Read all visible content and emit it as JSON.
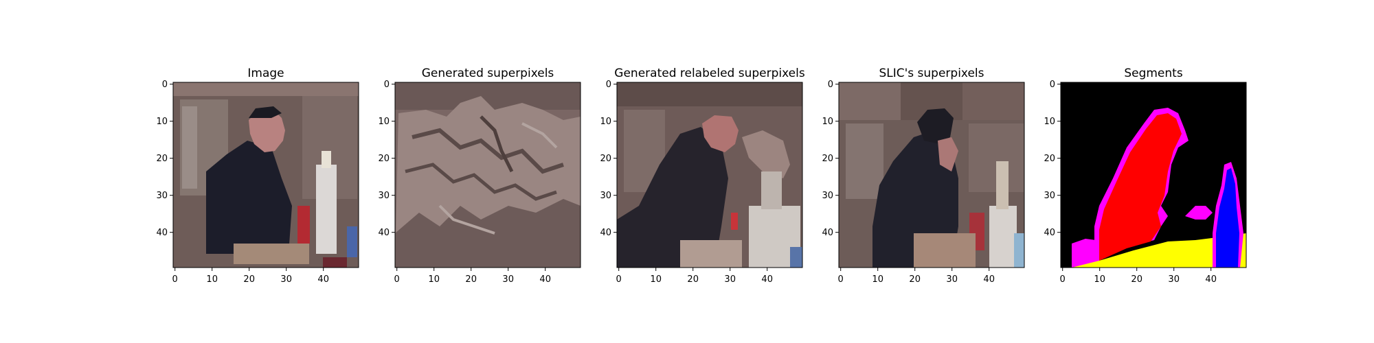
{
  "chart_data": [
    {
      "type": "image",
      "title": "Image",
      "x_ticks": [
        0,
        10,
        20,
        30,
        40
      ],
      "y_ticks": [
        0,
        10,
        20,
        30,
        40
      ],
      "xlim": [
        -0.5,
        49.5
      ],
      "ylim": [
        49.5,
        -0.5
      ]
    },
    {
      "type": "image",
      "title": "Generated superpixels",
      "x_ticks": [
        0,
        10,
        20,
        30,
        40
      ],
      "y_ticks": [
        0,
        10,
        20,
        30,
        40
      ],
      "xlim": [
        -0.5,
        49.5
      ],
      "ylim": [
        49.5,
        -0.5
      ]
    },
    {
      "type": "image",
      "title": "Generated relabeled superpixels",
      "x_ticks": [
        0,
        10,
        20,
        30,
        40
      ],
      "y_ticks": [
        0,
        10,
        20,
        30,
        40
      ],
      "xlim": [
        -0.5,
        49.5
      ],
      "ylim": [
        49.5,
        -0.5
      ]
    },
    {
      "type": "image",
      "title": "SLIC's superpixels",
      "x_ticks": [
        0,
        10,
        20,
        30,
        40
      ],
      "y_ticks": [
        0,
        10,
        20,
        30,
        40
      ],
      "xlim": [
        -0.5,
        49.5
      ],
      "ylim": [
        49.5,
        -0.5
      ]
    },
    {
      "type": "image",
      "title": "Segments",
      "x_ticks": [
        0,
        10,
        20,
        30,
        40
      ],
      "y_ticks": [
        0,
        10,
        20,
        30,
        40
      ],
      "xlim": [
        -0.5,
        49.5
      ],
      "ylim": [
        49.5,
        -0.5
      ]
    }
  ]
}
